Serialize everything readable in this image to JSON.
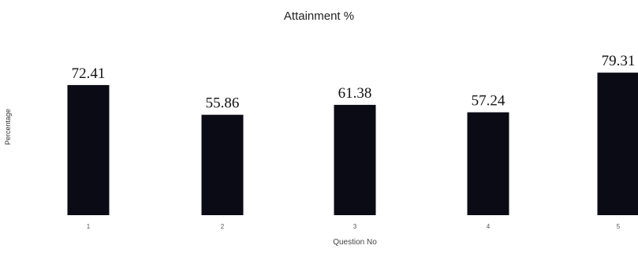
{
  "chart_data": {
    "type": "bar",
    "title": "Attainment %",
    "xlabel": "Question No",
    "ylabel": "Percentage",
    "categories": [
      "1",
      "2",
      "3",
      "4",
      "5"
    ],
    "values": [
      72.41,
      55.86,
      61.38,
      57.24,
      79.31
    ],
    "data_labels": [
      "72.41",
      "55.86",
      "61.38",
      "57.24",
      "79.31"
    ],
    "ylim": [
      0,
      100
    ],
    "grid": false,
    "legend": "none",
    "bar_color": "#0b0b16"
  }
}
